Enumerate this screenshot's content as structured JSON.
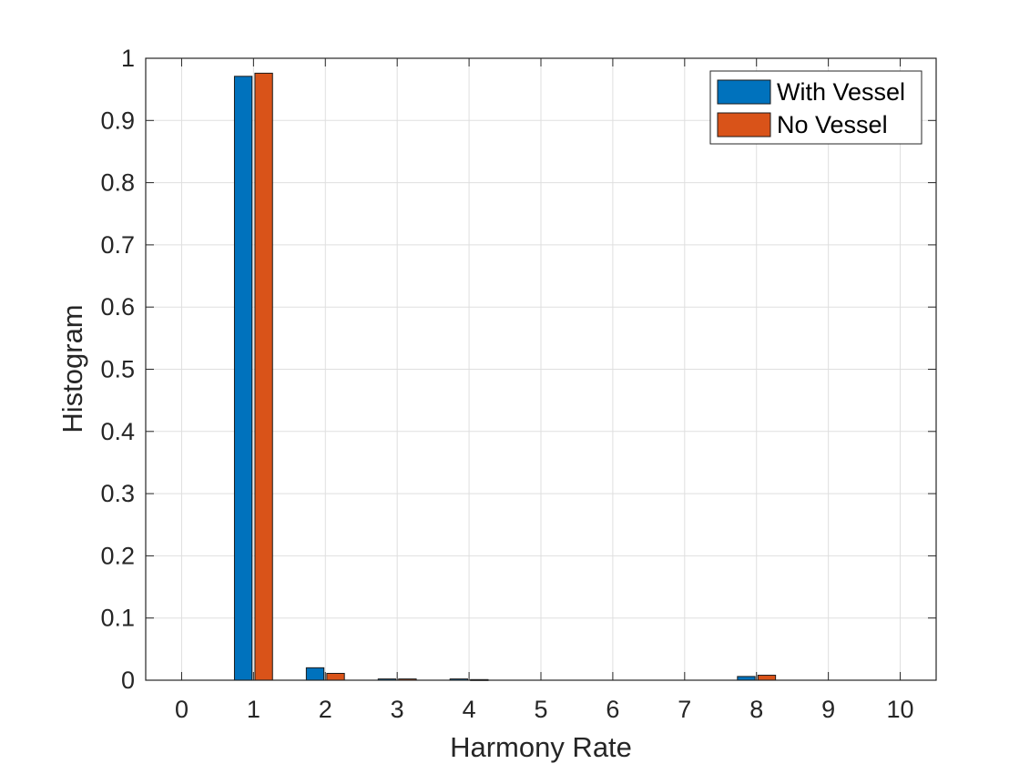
{
  "chart_data": {
    "type": "bar",
    "title": "",
    "xlabel": "Harmony Rate",
    "ylabel": "Histogram",
    "categories": [
      0,
      1,
      2,
      3,
      4,
      5,
      6,
      7,
      8,
      9,
      10
    ],
    "xlim": [
      -0.5,
      10.5
    ],
    "ylim": [
      0,
      1
    ],
    "yticks": [
      "0",
      "0.1",
      "0.2",
      "0.3",
      "0.4",
      "0.5",
      "0.6",
      "0.7",
      "0.8",
      "0.9",
      "1"
    ],
    "xticks": [
      "0",
      "1",
      "2",
      "3",
      "4",
      "5",
      "6",
      "7",
      "8",
      "9",
      "10"
    ],
    "grid": true,
    "legend_position": "top-right",
    "series": [
      {
        "name": "With Vessel",
        "color": "#0072BD",
        "values": [
          0,
          0.971,
          0.02,
          0.002,
          0.002,
          0,
          0,
          0,
          0.006,
          0,
          0
        ]
      },
      {
        "name": "No Vessel",
        "color": "#D95319",
        "values": [
          0,
          0.976,
          0.011,
          0.002,
          0.001,
          0,
          0,
          0,
          0.008,
          0,
          0
        ]
      }
    ]
  }
}
